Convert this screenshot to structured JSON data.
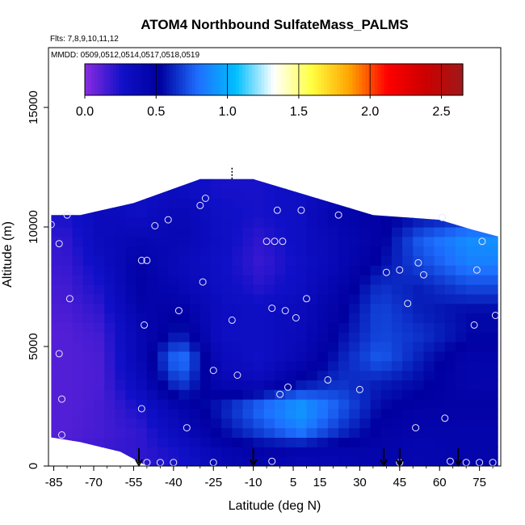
{
  "chart_data": {
    "type": "heatmap",
    "title": "ATOM4 Northbound SulfateMass_PALMS",
    "flights_note": "Flts: 7,8,9,10,11,12",
    "dates_note": "MMDD: 0509,0512,0514,0517,0518,0519",
    "xlabel": "Latitude (deg N)",
    "ylabel": "Altitude (m)",
    "xlim": [
      -87,
      83
    ],
    "ylim": [
      0,
      17500
    ],
    "x_ticks": [
      -85,
      -70,
      -55,
      -40,
      -25,
      -10,
      5,
      15,
      30,
      45,
      60,
      75
    ],
    "y_ticks": [
      0,
      5000,
      10000,
      15000
    ],
    "colorbar": {
      "min": 0,
      "max": 2.65,
      "ticks": [
        "0.0",
        "0.5",
        "1.0",
        "1.5",
        "2.0",
        "2.5"
      ],
      "tick_values": [
        0,
        0.5,
        1.0,
        1.5,
        2.0,
        2.5
      ],
      "colors": [
        "#8b2be2",
        "#1010c8",
        "#0000a0",
        "#1e6fff",
        "#00bfff",
        "#ffffff",
        "#ffff40",
        "#ffa500",
        "#ff0000",
        "#cc0000",
        "#a01818"
      ]
    },
    "field": {
      "lat_edges": [
        -86,
        -75,
        -60,
        -45,
        -30,
        -15,
        0,
        15,
        30,
        45,
        60,
        82
      ],
      "alt_edges": [
        0,
        1000,
        2000,
        3000,
        4000,
        5000,
        6000,
        7000,
        8000,
        9000,
        10000,
        11000,
        12000
      ],
      "values": [
        [
          0.15,
          0.18,
          0.2,
          0.25,
          0.4,
          0.45,
          0.4,
          0.42,
          0.45,
          0.42,
          0.45
        ],
        [
          0.12,
          0.15,
          0.2,
          0.35,
          0.55,
          0.7,
          0.85,
          0.65,
          0.5,
          0.45,
          0.45
        ],
        [
          0.12,
          0.15,
          0.25,
          0.45,
          0.6,
          0.8,
          0.95,
          0.75,
          0.55,
          0.5,
          0.5
        ],
        [
          0.12,
          0.14,
          0.35,
          0.7,
          0.4,
          0.35,
          0.55,
          0.65,
          0.6,
          0.55,
          0.45
        ],
        [
          0.12,
          0.14,
          0.4,
          0.85,
          0.35,
          0.28,
          0.4,
          0.6,
          0.75,
          0.6,
          0.45
        ],
        [
          0.12,
          0.16,
          0.4,
          0.6,
          0.3,
          0.3,
          0.35,
          0.55,
          0.7,
          0.65,
          0.55
        ],
        [
          0.14,
          0.2,
          0.45,
          0.5,
          0.32,
          0.3,
          0.35,
          0.5,
          0.7,
          0.6,
          0.55
        ],
        [
          0.16,
          0.25,
          0.5,
          0.4,
          0.3,
          0.22,
          0.3,
          0.45,
          0.65,
          0.6,
          0.7
        ],
        [
          0.18,
          0.3,
          0.48,
          0.35,
          0.28,
          0.18,
          0.28,
          0.4,
          0.55,
          0.7,
          0.85
        ],
        [
          0.2,
          0.35,
          0.4,
          0.4,
          0.3,
          0.2,
          0.3,
          0.4,
          0.5,
          0.75,
          0.9
        ],
        [
          0.25,
          0.35,
          0.3,
          0.4,
          0.28,
          0.25,
          0.3,
          0.45,
          0.5,
          0.55,
          0.6
        ],
        [
          null,
          null,
          0.3,
          0.32,
          0.25,
          0.25,
          0.3,
          0.4,
          null,
          null,
          null
        ]
      ],
      "top_edge": [
        [
          -86,
          10500
        ],
        [
          -75,
          10500
        ],
        [
          -55,
          11000
        ],
        [
          -30,
          12000
        ],
        [
          -10,
          12000
        ],
        [
          20,
          11000
        ],
        [
          35,
          10500
        ],
        [
          60,
          10300
        ],
        [
          72,
          9900
        ],
        [
          82,
          9600
        ]
      ],
      "bottom_edge": [
        [
          -86,
          1200
        ],
        [
          -75,
          1000
        ],
        [
          -60,
          600
        ],
        [
          -50,
          0
        ],
        [
          82,
          0
        ]
      ]
    },
    "samples": [
      [
        -86,
        10100
      ],
      [
        -83,
        9300
      ],
      [
        -80,
        10500
      ],
      [
        -79,
        7000
      ],
      [
        -83,
        4700
      ],
      [
        -82,
        2800
      ],
      [
        -82,
        1300
      ],
      [
        -52,
        8600
      ],
      [
        -50,
        8600
      ],
      [
        -51,
        5900
      ],
      [
        -52,
        2400
      ],
      [
        -47,
        10050
      ],
      [
        -42,
        10300
      ],
      [
        -38,
        6500
      ],
      [
        -30,
        10900
      ],
      [
        -28,
        11200
      ],
      [
        -29,
        7700
      ],
      [
        -25,
        4000
      ],
      [
        -18,
        6100
      ],
      [
        -16,
        3800
      ],
      [
        -5,
        9400
      ],
      [
        -3,
        6600
      ],
      [
        -2,
        9400
      ],
      [
        -1,
        10700
      ],
      [
        1,
        9400
      ],
      [
        2,
        6500
      ],
      [
        3,
        3300
      ],
      [
        0,
        3000
      ],
      [
        6,
        6200
      ],
      [
        8,
        10700
      ],
      [
        10,
        7000
      ],
      [
        18,
        3600
      ],
      [
        22,
        10500
      ],
      [
        30,
        3200
      ],
      [
        40,
        8100
      ],
      [
        45,
        8200
      ],
      [
        48,
        6800
      ],
      [
        51,
        1600
      ],
      [
        52,
        8500
      ],
      [
        54,
        8000
      ],
      [
        61,
        10400
      ],
      [
        62,
        2000
      ],
      [
        73,
        5900
      ],
      [
        74,
        8200
      ],
      [
        76,
        9400
      ],
      [
        81,
        6300
      ],
      [
        -35,
        1600
      ],
      [
        -55,
        100
      ],
      [
        -50,
        150
      ],
      [
        -45,
        150
      ],
      [
        -40,
        150
      ],
      [
        -25,
        150
      ],
      [
        -3,
        200
      ],
      [
        45,
        150
      ],
      [
        64,
        200
      ],
      [
        70,
        150
      ],
      [
        75,
        150
      ],
      [
        80,
        150
      ]
    ],
    "arrows_x": [
      -53,
      -10,
      39,
      45,
      67
    ],
    "dashed_marker_x": -18
  }
}
